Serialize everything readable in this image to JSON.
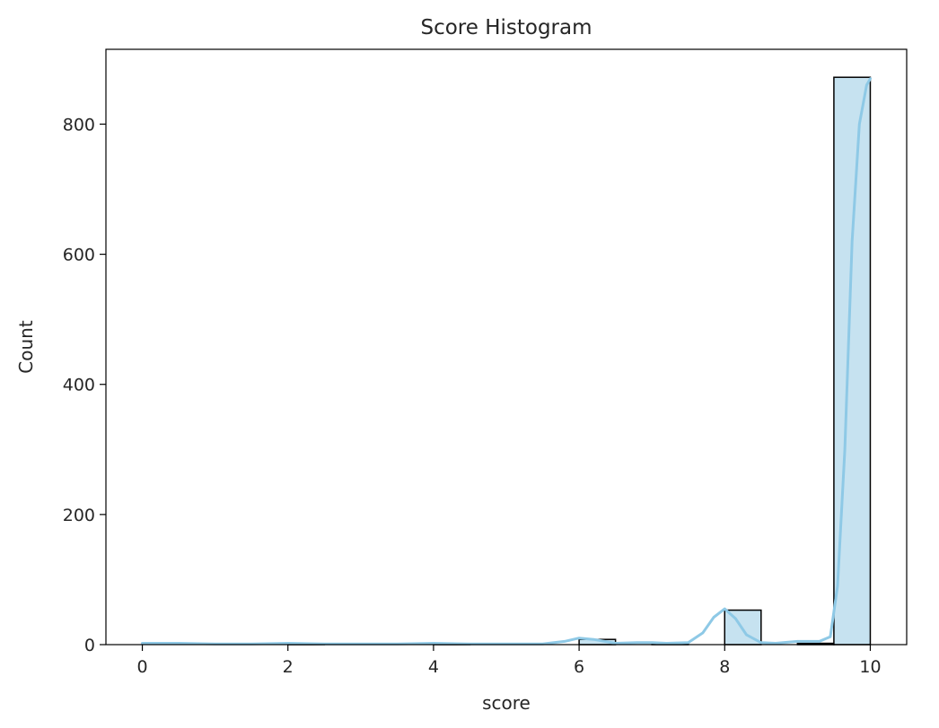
{
  "chart_data": {
    "type": "bar",
    "subtype": "histogram",
    "title": "Score Histogram",
    "xlabel": "score",
    "ylabel": "Count",
    "xlim": [
      -0.5,
      10.5
    ],
    "ylim": [
      0,
      915
    ],
    "xticks": [
      0,
      2,
      4,
      6,
      8,
      10
    ],
    "yticks": [
      0,
      200,
      400,
      600,
      800
    ],
    "bin_width": 0.5,
    "bins": [
      {
        "start": 0.0,
        "count": 0
      },
      {
        "start": 0.5,
        "count": 0
      },
      {
        "start": 1.0,
        "count": 0
      },
      {
        "start": 1.5,
        "count": 0
      },
      {
        "start": 2.0,
        "count": 1
      },
      {
        "start": 2.5,
        "count": 0
      },
      {
        "start": 3.0,
        "count": 0
      },
      {
        "start": 3.5,
        "count": 0
      },
      {
        "start": 4.0,
        "count": 1
      },
      {
        "start": 4.5,
        "count": 0
      },
      {
        "start": 5.0,
        "count": 0
      },
      {
        "start": 5.5,
        "count": 0
      },
      {
        "start": 6.0,
        "count": 8
      },
      {
        "start": 6.5,
        "count": 0
      },
      {
        "start": 7.0,
        "count": 1
      },
      {
        "start": 7.5,
        "count": 0
      },
      {
        "start": 8.0,
        "count": 53
      },
      {
        "start": 8.5,
        "count": 0
      },
      {
        "start": 9.0,
        "count": 2
      },
      {
        "start": 9.5,
        "count": 872
      }
    ],
    "kde": {
      "x": [
        0.0,
        0.5,
        1.0,
        1.5,
        2.0,
        2.5,
        3.0,
        3.5,
        4.0,
        4.5,
        5.0,
        5.5,
        5.8,
        6.0,
        6.2,
        6.5,
        6.8,
        7.0,
        7.2,
        7.5,
        7.7,
        7.85,
        8.0,
        8.15,
        8.3,
        8.5,
        8.7,
        9.0,
        9.3,
        9.45,
        9.55,
        9.65,
        9.75,
        9.85,
        9.95,
        10.0
      ],
      "y": [
        2,
        2,
        1,
        1,
        2,
        1,
        1,
        1,
        2,
        1,
        1,
        1,
        5,
        10,
        8,
        2,
        3,
        3,
        2,
        3,
        18,
        42,
        55,
        40,
        15,
        3,
        2,
        5,
        5,
        12,
        90,
        300,
        620,
        800,
        860,
        870
      ]
    },
    "bar_fill": "#c6e2f0",
    "bar_edge": "#000000",
    "kde_color": "#8ec9e6",
    "grid": false,
    "legend": "none"
  }
}
